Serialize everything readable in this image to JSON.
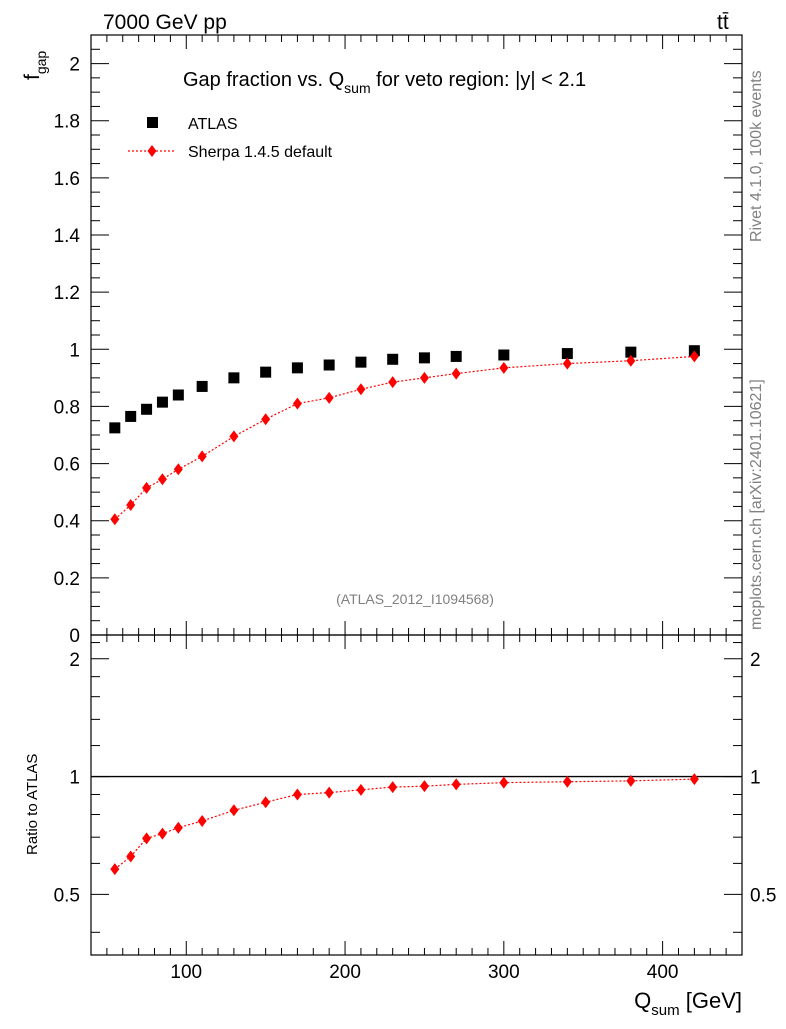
{
  "header": {
    "energy": "7000 GeV pp",
    "process": "tt̄"
  },
  "side": {
    "rivet": "Rivet 4.1.0,  100k events",
    "source": "mcplots.cern.ch [arXiv:2401.10621]"
  },
  "colors": {
    "data": "#000000",
    "mc": "#ff0000",
    "frame": "#000000",
    "grey": "#808080"
  },
  "chart_data": [
    {
      "panel": "main",
      "type": "scatter",
      "title": "Gap fraction vs. Q_sum for veto region: |y| < 2.1",
      "title_main": "Gap fraction vs. Q",
      "title_sub": "sum",
      "title_rest": " for veto region: |y| < 2.1",
      "ylabel_main": "f",
      "ylabel_sub": "gap",
      "analysis_tag": "(ATLAS_2012_I1094568)",
      "xlim": [
        40,
        450
      ],
      "ylim": [
        0,
        2.1
      ],
      "yticks": [
        0,
        0.2,
        0.4,
        0.6,
        0.8,
        1,
        1.2,
        1.4,
        1.6,
        1.8,
        2
      ],
      "ytick_labels": [
        "0",
        "0.2",
        "0.4",
        "0.6",
        "0.8",
        "1",
        "1.2",
        "1.4",
        "1.6",
        "1.8",
        "2"
      ],
      "legend_position": "top-left",
      "series": [
        {
          "name": "ATLAS",
          "marker": "square",
          "line": "none",
          "x": [
            55,
            65,
            75,
            85,
            95,
            110,
            130,
            150,
            170,
            190,
            210,
            230,
            250,
            270,
            300,
            340,
            380,
            420
          ],
          "values": [
            0.725,
            0.765,
            0.79,
            0.815,
            0.84,
            0.87,
            0.9,
            0.92,
            0.935,
            0.945,
            0.955,
            0.965,
            0.97,
            0.975,
            0.98,
            0.985,
            0.99,
            0.995
          ]
        },
        {
          "name": "Sherpa 1.4.5 default",
          "marker": "diamond",
          "line": "dotted",
          "x": [
            55,
            65,
            75,
            85,
            95,
            110,
            130,
            150,
            170,
            190,
            210,
            230,
            250,
            270,
            300,
            340,
            380,
            420
          ],
          "values": [
            0.405,
            0.455,
            0.515,
            0.545,
            0.58,
            0.625,
            0.695,
            0.755,
            0.81,
            0.83,
            0.86,
            0.885,
            0.9,
            0.915,
            0.935,
            0.95,
            0.96,
            0.975
          ]
        }
      ]
    },
    {
      "panel": "ratio",
      "type": "line",
      "ylabel": "Ratio to ATLAS",
      "xlabel_main": "Q",
      "xlabel_sub": "sum",
      "xlabel_unit": " [GeV]",
      "xlim": [
        40,
        450
      ],
      "ylim": [
        0.35,
        2.3
      ],
      "xticks": [
        100,
        200,
        300,
        400
      ],
      "xtick_labels": [
        "100",
        "200",
        "300",
        "400"
      ],
      "yticks": [
        0.5,
        1,
        2
      ],
      "ytick_labels": [
        "0.5",
        "1",
        "2"
      ],
      "reference_line": 1,
      "series": [
        {
          "name": "Sherpa 1.4.5 default / ATLAS",
          "x": [
            55,
            65,
            75,
            85,
            95,
            110,
            130,
            150,
            170,
            190,
            210,
            230,
            250,
            270,
            300,
            340,
            380,
            420
          ],
          "values": [
            0.58,
            0.625,
            0.695,
            0.715,
            0.74,
            0.77,
            0.82,
            0.86,
            0.9,
            0.91,
            0.925,
            0.94,
            0.945,
            0.955,
            0.965,
            0.97,
            0.975,
            0.985
          ]
        }
      ]
    }
  ]
}
